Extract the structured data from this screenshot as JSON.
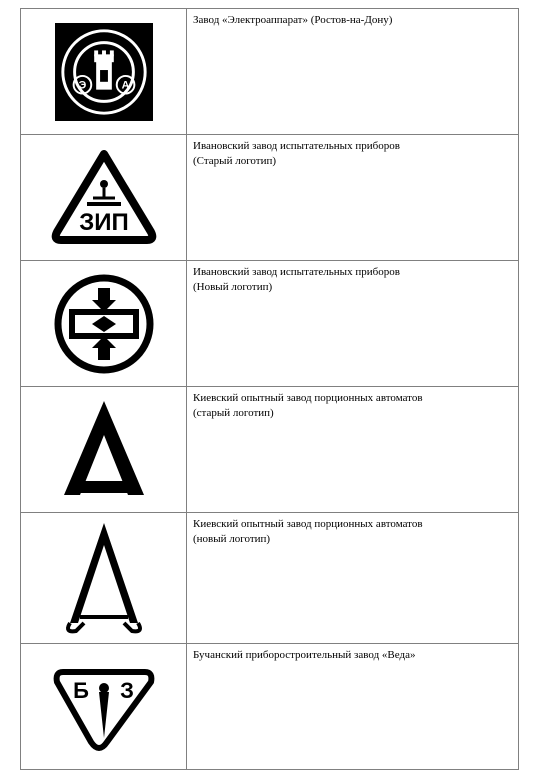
{
  "table": {
    "border_color": "#808080",
    "background": "#ffffff",
    "font_family": "Times New Roman",
    "rows": [
      {
        "description": "Завод «Электроаппарат» (Ростов-на-Дону)",
        "logo": {
          "type": "square-badge",
          "bg": "#000000",
          "fg": "#ffffff",
          "left_letter": "Э",
          "right_letter": "А"
        }
      },
      {
        "description": "Ивановский завод испытательных приборов\n(Старый логотип)",
        "logo": {
          "type": "triangle-text",
          "bg": "#ffffff",
          "fg": "#000000",
          "text": "ЗИП"
        }
      },
      {
        "description": "Ивановский завод испытательных приборов\n(Новый логотип)",
        "logo": {
          "type": "circle-arrows",
          "bg": "#ffffff",
          "fg": "#000000"
        }
      },
      {
        "description": "Киевский опытный завод порционных автоматов\n(старый логотип)",
        "logo": {
          "type": "letter-a-old",
          "bg": "#ffffff",
          "fg": "#000000"
        }
      },
      {
        "description": "Киевский опытный завод порционных автоматов\n(новый логотип)",
        "logo": {
          "type": "letter-a-new",
          "bg": "#ffffff",
          "fg": "#000000"
        }
      },
      {
        "description": "Бучанский приборостроительный завод «Веда»",
        "logo": {
          "type": "shield-bz",
          "bg": "#ffffff",
          "fg": "#000000",
          "left_letter": "Б",
          "right_letter": "З"
        }
      }
    ]
  }
}
